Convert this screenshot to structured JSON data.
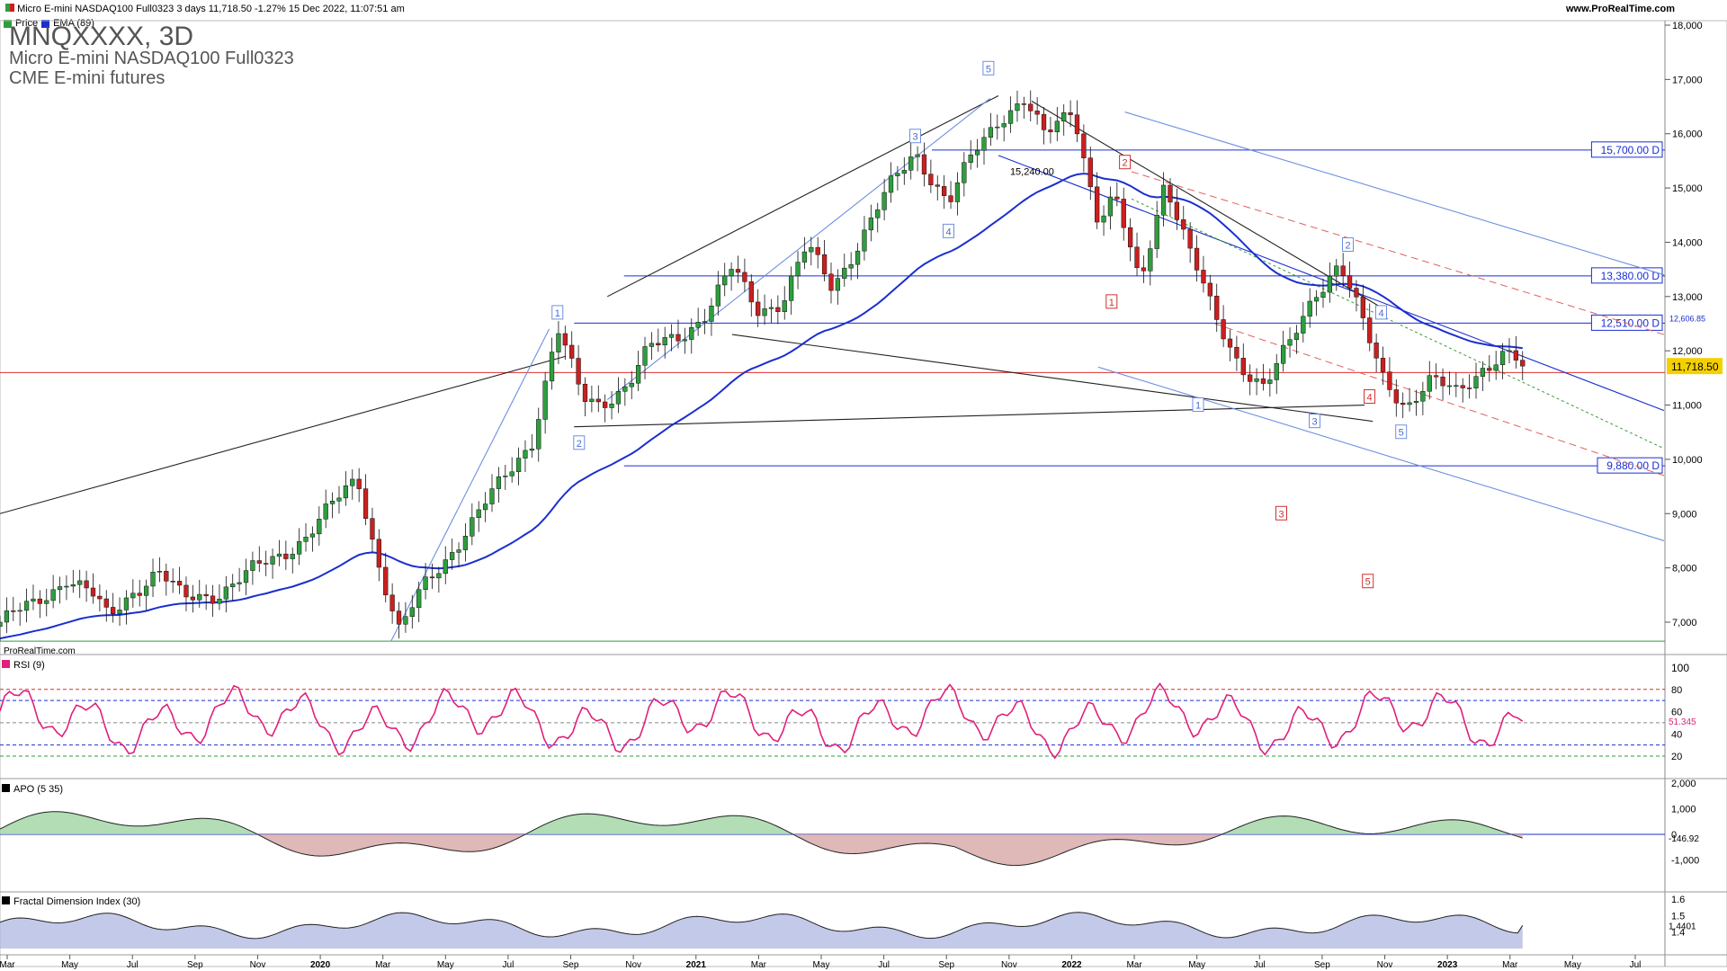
{
  "header": {
    "info": "Micro E-mini NASDAQ100 Full0323 3 days 11,718.50 -1.27% 15 Dec 2022, 11:07:51 am",
    "site": "www.ProRealTime.com",
    "legend_price": "Price",
    "legend_ema": "EMA (89)"
  },
  "title": {
    "symbol": "MNQXXXX, 3D",
    "name": "Micro E-mini NASDAQ100 Full0323",
    "exchange": "CME E-mini futures"
  },
  "watermark": "ProRealTime.com",
  "colors": {
    "up": "#2e9e3e",
    "down": "#cc1f1f",
    "ema": "#1a2fcf",
    "rsi": "#e0207a",
    "level": "#1a2fcf",
    "price_line": "#e03030",
    "pos_fill": "#9fd4a2",
    "neg_fill": "#d7a6a6",
    "fdi_fill": "#aab2e0"
  },
  "chart_data": [
    {
      "type": "candlestick",
      "series": [
        {
          "name": "Price"
        },
        {
          "name": "EMA (89)"
        }
      ],
      "ylim": [
        6500,
        18000
      ],
      "yticks": [
        "18,000",
        "17,000",
        "16,000",
        "15,000",
        "14,000",
        "13,000",
        "12,000",
        "11,000",
        "10,000",
        "9,000",
        "8,000",
        "7,000"
      ],
      "ytick_values": [
        18000,
        17000,
        16000,
        15000,
        14000,
        13000,
        12000,
        11000,
        10000,
        9000,
        8000,
        7000
      ],
      "xticks": [
        "Mar",
        "May",
        "Jul",
        "Sep",
        "Nov",
        "2020",
        "Mar",
        "May",
        "Jul",
        "Sep",
        "Nov",
        "2021",
        "Mar",
        "May",
        "Jul",
        "Sep",
        "Nov",
        "2022",
        "Mar",
        "May",
        "Jul",
        "Sep",
        "Nov",
        "2023",
        "Mar",
        "May",
        "Jul"
      ],
      "last_price": "11,718.50",
      "ema_value": "12,606.85",
      "levels": [
        {
          "label": "15,700.00 D",
          "value": 15700
        },
        {
          "label": "13,380.00 D",
          "value": 13380
        },
        {
          "label": "12,510.00 D",
          "value": 12510
        },
        {
          "label": "9,880.00 D",
          "value": 9880
        }
      ],
      "annotation": "15,240.00",
      "wave_blue": [
        "1",
        "2",
        "3",
        "4",
        "5",
        "1",
        "2",
        "3",
        "4",
        "5"
      ],
      "wave_red": [
        "1",
        "2",
        "3",
        "4",
        "5"
      ]
    },
    {
      "type": "line",
      "series": [
        {
          "name": "RSI (9)"
        }
      ],
      "ylim": [
        10,
        100
      ],
      "yticks": [
        "100",
        "80",
        "60",
        "40",
        "20"
      ],
      "ytick_values": [
        100,
        80,
        60,
        40,
        20
      ],
      "last": "51.345"
    },
    {
      "type": "area",
      "series": [
        {
          "name": "APO (5 35)"
        }
      ],
      "yticks": [
        "2,000",
        "1,000",
        "0",
        "-1,000"
      ],
      "ytick_values": [
        2000,
        1000,
        0,
        -1000
      ],
      "last": "-146.92"
    },
    {
      "type": "area",
      "series": [
        {
          "name": "Fractal Dimension Index (30)"
        }
      ],
      "yticks": [
        "1.6",
        "1.5",
        "1.4"
      ],
      "ytick_values": [
        1.6,
        1.5,
        1.4
      ],
      "last": "1.4401"
    }
  ]
}
